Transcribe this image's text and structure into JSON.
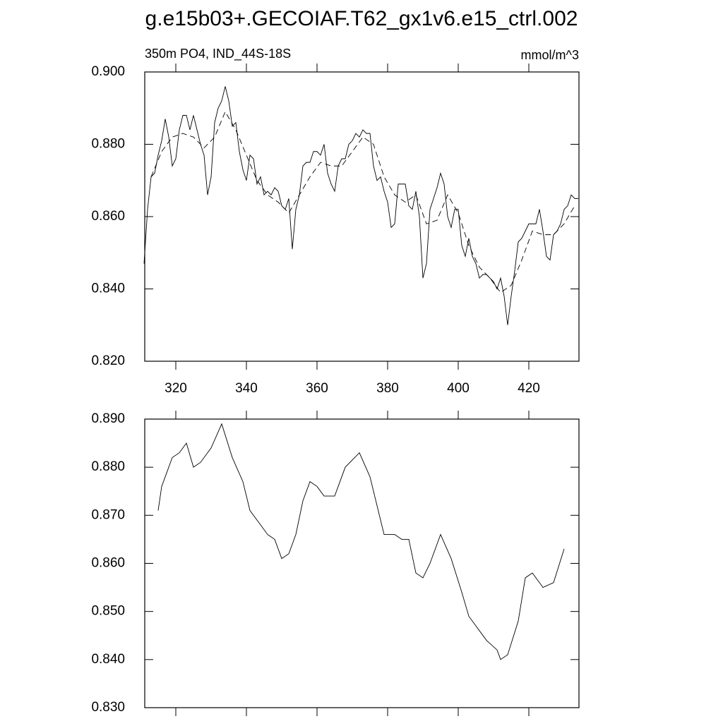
{
  "chart_data": [
    {
      "type": "line",
      "title": "g.e15b03+.GECOIAF.T62_gx1v6.e15_ctrl.002",
      "left_string": "350m PO4, IND_44S-18S",
      "right_string": "mmol/m^3",
      "xlim": [
        311.2,
        434.2
      ],
      "xticks": [
        320,
        340,
        360,
        380,
        400,
        420
      ],
      "ylim": [
        0.82,
        0.9
      ],
      "yticks": [
        {
          "value": 0.82,
          "label": "0.820"
        },
        {
          "value": 0.84,
          "label": "0.840"
        },
        {
          "value": 0.86,
          "label": "0.860"
        },
        {
          "value": 0.88,
          "label": "0.880"
        },
        {
          "value": 0.9,
          "label": "0.900"
        }
      ],
      "series": [
        {
          "color": "#000000",
          "line_style": "solid",
          "x": [
            311,
            312,
            313,
            314,
            315,
            316,
            317,
            318,
            319,
            320,
            321,
            322,
            323,
            324,
            325,
            326,
            327,
            328,
            329,
            330,
            331,
            332,
            333,
            334,
            335,
            336,
            337,
            338,
            339,
            340,
            341,
            342,
            343,
            344,
            345,
            346,
            347,
            348,
            349,
            350,
            351,
            352,
            353,
            354,
            355,
            356,
            357,
            358,
            359,
            360,
            361,
            362,
            363,
            364,
            365,
            366,
            367,
            368,
            369,
            370,
            371,
            372,
            373,
            374,
            375,
            376,
            377,
            378,
            379,
            380,
            381,
            382,
            383,
            384,
            385,
            386,
            387,
            388,
            389,
            390,
            391,
            392,
            393,
            394,
            395,
            396,
            397,
            398,
            399,
            400,
            401,
            402,
            403,
            404,
            405,
            406,
            407,
            408,
            409,
            410,
            411,
            412,
            413,
            414,
            415,
            416,
            417,
            418,
            419,
            420,
            421,
            422,
            423,
            424,
            425,
            426,
            427,
            428,
            429,
            430,
            431,
            432,
            433,
            434
          ],
          "values": [
            0.847,
            0.862,
            0.871,
            0.872,
            0.877,
            0.881,
            0.887,
            0.882,
            0.874,
            0.876,
            0.884,
            0.888,
            0.888,
            0.884,
            0.888,
            0.884,
            0.88,
            0.877,
            0.866,
            0.871,
            0.886,
            0.89,
            0.892,
            0.896,
            0.892,
            0.885,
            0.886,
            0.878,
            0.873,
            0.87,
            0.877,
            0.876,
            0.869,
            0.871,
            0.866,
            0.867,
            0.866,
            0.868,
            0.867,
            0.863,
            0.862,
            0.865,
            0.851,
            0.862,
            0.866,
            0.874,
            0.875,
            0.875,
            0.878,
            0.878,
            0.877,
            0.88,
            0.872,
            0.869,
            0.867,
            0.874,
            0.876,
            0.876,
            0.88,
            0.881,
            0.883,
            0.882,
            0.884,
            0.883,
            0.883,
            0.874,
            0.87,
            0.871,
            0.867,
            0.864,
            0.857,
            0.858,
            0.869,
            0.869,
            0.869,
            0.863,
            0.862,
            0.867,
            0.86,
            0.843,
            0.847,
            0.862,
            0.865,
            0.868,
            0.872,
            0.869,
            0.86,
            0.857,
            0.862,
            0.862,
            0.852,
            0.849,
            0.854,
            0.849,
            0.847,
            0.843,
            0.844,
            0.844,
            0.843,
            0.842,
            0.84,
            0.843,
            0.838,
            0.83,
            0.838,
            0.845,
            0.853,
            0.854,
            0.856,
            0.858,
            0.858,
            0.858,
            0.862,
            0.856,
            0.849,
            0.848,
            0.855,
            0.856,
            0.858,
            0.862,
            0.863,
            0.866,
            0.865,
            0.865
          ]
        },
        {
          "color": "#000000",
          "line_style": "dashed",
          "x": [
            313,
            316,
            319,
            322,
            325,
            328,
            331,
            334,
            337,
            340,
            343,
            346,
            349,
            352,
            355,
            358,
            361,
            364,
            367,
            370,
            373,
            376,
            379,
            382,
            385,
            388,
            391,
            394,
            397,
            400,
            403,
            406,
            409,
            412,
            415,
            418,
            421,
            424,
            427,
            430,
            433
          ],
          "values": [
            0.871,
            0.878,
            0.882,
            0.883,
            0.882,
            0.879,
            0.882,
            0.889,
            0.884,
            0.877,
            0.87,
            0.866,
            0.864,
            0.861,
            0.866,
            0.871,
            0.875,
            0.874,
            0.874,
            0.878,
            0.882,
            0.88,
            0.871,
            0.866,
            0.864,
            0.866,
            0.858,
            0.859,
            0.866,
            0.861,
            0.852,
            0.846,
            0.843,
            0.839,
            0.841,
            0.848,
            0.856,
            0.855,
            0.855,
            0.858,
            0.863
          ]
        }
      ]
    },
    {
      "type": "line",
      "xlim": [
        311.2,
        434.2
      ],
      "ylim": [
        0.83,
        0.89
      ],
      "yticks": [
        {
          "value": 0.83,
          "label": "0.830"
        },
        {
          "value": 0.84,
          "label": "0.840"
        },
        {
          "value": 0.85,
          "label": "0.850"
        },
        {
          "value": 0.86,
          "label": "0.860"
        },
        {
          "value": 0.87,
          "label": "0.870"
        },
        {
          "value": 0.88,
          "label": "0.880"
        },
        {
          "value": 0.89,
          "label": "0.890"
        }
      ],
      "series": [
        {
          "color": "#000000",
          "line_style": "solid",
          "x": [
            315,
            316,
            317,
            319,
            321,
            323,
            325,
            327,
            330,
            333,
            336,
            339,
            341,
            343,
            346,
            348,
            350,
            352,
            354,
            356,
            358,
            360,
            362,
            365,
            368,
            372,
            375,
            379,
            382,
            384,
            386,
            388,
            390,
            392,
            395,
            398,
            401,
            403,
            406,
            408,
            411,
            412,
            414,
            417,
            419,
            421,
            424,
            427,
            430
          ],
          "values": [
            0.871,
            0.876,
            0.878,
            0.882,
            0.883,
            0.885,
            0.88,
            0.881,
            0.884,
            0.889,
            0.882,
            0.877,
            0.871,
            0.869,
            0.866,
            0.865,
            0.861,
            0.862,
            0.866,
            0.873,
            0.877,
            0.876,
            0.874,
            0.874,
            0.88,
            0.883,
            0.878,
            0.866,
            0.866,
            0.865,
            0.865,
            0.858,
            0.857,
            0.86,
            0.866,
            0.861,
            0.854,
            0.849,
            0.846,
            0.844,
            0.842,
            0.84,
            0.841,
            0.848,
            0.857,
            0.858,
            0.855,
            0.856,
            0.863
          ]
        }
      ]
    }
  ]
}
